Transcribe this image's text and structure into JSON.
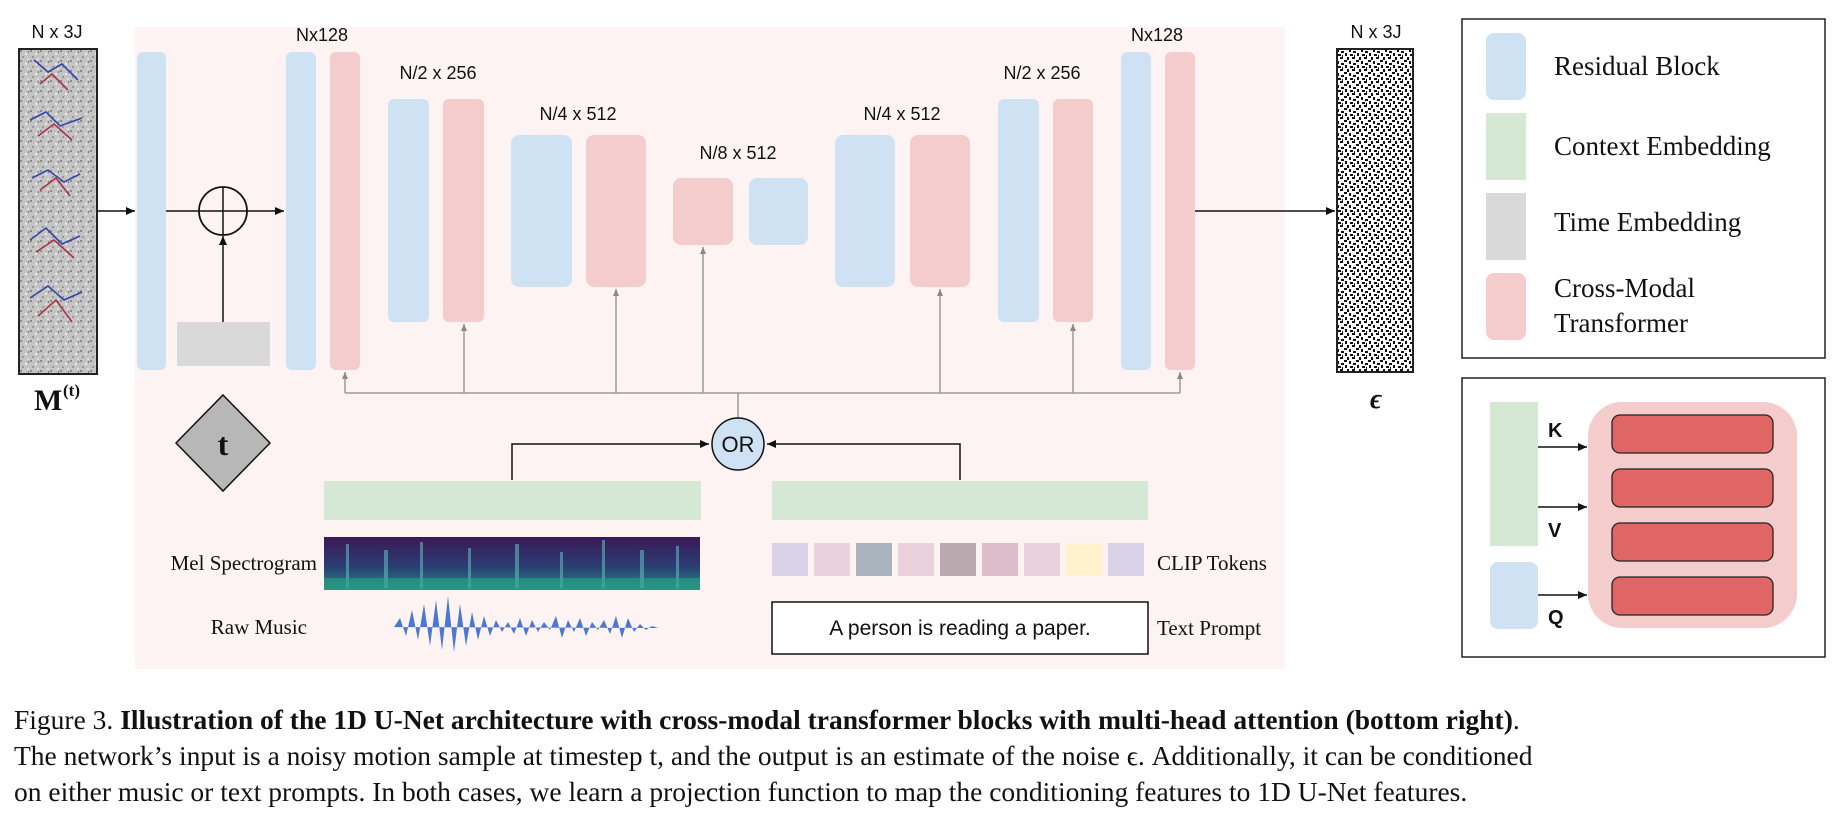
{
  "colors": {
    "residual_block": "#cfe2f3",
    "context_embedding": "#d5e8d4",
    "time_embedding": "#d9d9d9",
    "cross_modal_transformer": "#f4cccc",
    "attention_layer": "#e06666",
    "background_panel": "#fdf3f3"
  },
  "input": {
    "dim_label": "N x 3J",
    "symbol": "M",
    "superscript": "(t)"
  },
  "output": {
    "dim_label": "N x 3J",
    "symbol": "ϵ"
  },
  "unet": {
    "dims": {
      "level1_left": "Nx128",
      "level2_left": "N/2 x 256",
      "level3_left": "N/4 x 512",
      "bottleneck": "N/8 x 512",
      "level3_right": "N/4 x 512",
      "level2_right": "N/2 x 256",
      "level1_right": "Nx128"
    }
  },
  "time_node": {
    "label": "t"
  },
  "or_node": {
    "label": "OR"
  },
  "music_branch": {
    "mel_label": "Mel Spectrogram",
    "raw_label": "Raw Music"
  },
  "text_branch": {
    "clip_label": "CLIP Tokens",
    "prompt_text": "A person is reading a paper.",
    "prompt_label": "Text Prompt",
    "token_colors": [
      "#d9d2e9",
      "#ead1dc",
      "#a8b3bd",
      "#ead1dc",
      "#bba9b0",
      "#ddbccb",
      "#ead1dc",
      "#fff2cc",
      "#d9d2e9"
    ]
  },
  "legend": {
    "items": [
      {
        "label": "Residual Block"
      },
      {
        "label": "Context Embedding"
      },
      {
        "label": "Time Embedding"
      },
      {
        "label_line1": "Cross-Modal",
        "label_line2": "Transformer"
      }
    ]
  },
  "attention_panel": {
    "k_label": "K",
    "v_label": "V",
    "q_label": "Q"
  },
  "caption": {
    "prefix": "Figure 3.",
    "bold_text": "Illustration of the 1D U-Net architecture with cross-modal transformer blocks with multi-head attention (bottom right)",
    "line1_tail": ".",
    "line2": "The network’s input is a noisy motion sample at timestep t, and the output is an estimate of the noise ϵ. Additionally, it can be conditioned",
    "line3": "on either music or text prompts. In both cases, we learn a projection function to map the conditioning features to 1D U-Net features."
  }
}
